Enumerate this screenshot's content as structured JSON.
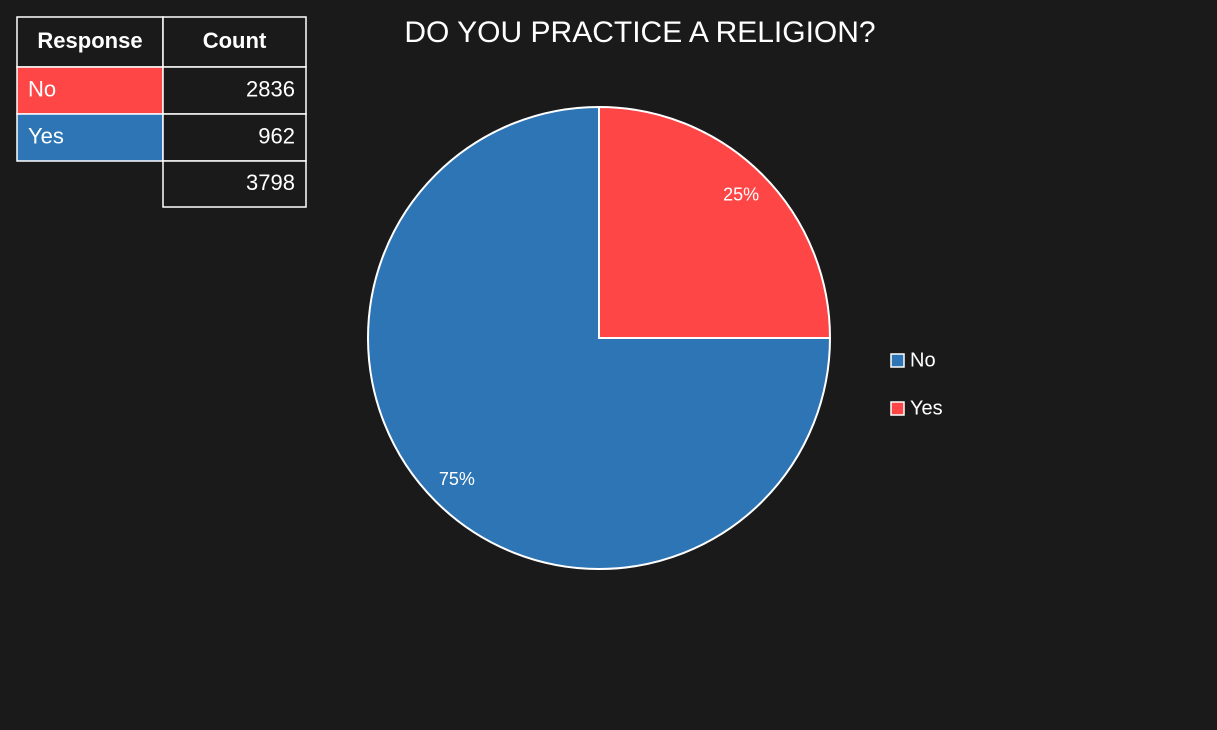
{
  "chart_data": {
    "type": "pie",
    "title": "DO YOU PRACTICE A RELIGION?",
    "categories": [
      "No",
      "Yes"
    ],
    "values": [
      75,
      25
    ],
    "value_labels": [
      "75%",
      "25%"
    ],
    "colors": [
      "#2e75b6",
      "#ff4646"
    ],
    "legend": "right"
  },
  "table": {
    "columns": [
      "Response",
      "Count"
    ],
    "rows": [
      [
        "No",
        "2836"
      ],
      [
        "Yes",
        "962"
      ],
      [
        null,
        "3798"
      ]
    ],
    "row_colors": [
      "#ff4646",
      "#2e75b6",
      null
    ]
  }
}
